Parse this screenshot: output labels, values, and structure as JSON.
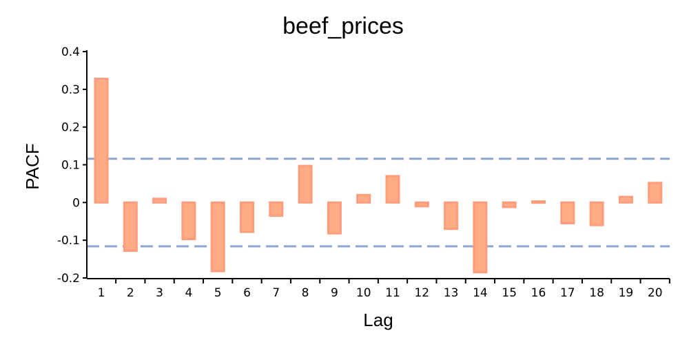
{
  "chart_data": {
    "type": "bar",
    "title": "beef_prices",
    "xlabel": "Lag",
    "ylabel": "PACF",
    "categories": [
      "1",
      "2",
      "3",
      "4",
      "5",
      "6",
      "7",
      "8",
      "9",
      "10",
      "11",
      "12",
      "13",
      "14",
      "15",
      "16",
      "17",
      "18",
      "19",
      "20"
    ],
    "values": [
      0.328,
      -0.128,
      0.01,
      -0.097,
      -0.182,
      -0.078,
      -0.035,
      0.097,
      -0.082,
      0.02,
      0.07,
      -0.01,
      -0.07,
      -0.185,
      -0.012,
      0.003,
      -0.055,
      -0.06,
      0.015,
      0.052
    ],
    "confidence_bounds": [
      0.116,
      -0.116
    ],
    "ylim": [
      -0.2,
      0.4
    ],
    "yticks": [
      0.4,
      0.3,
      0.2,
      0.1,
      0,
      -0.1,
      -0.2
    ],
    "ytick_labels": [
      "0.4",
      "0.3",
      "0.2",
      "0.1",
      "0",
      "-0.1",
      "-0.2"
    ],
    "grid": false,
    "colors": {
      "bar_fill": "#ffab86",
      "bar_edge": "#ff9c7c",
      "confidence": "#8fa3cf"
    }
  }
}
